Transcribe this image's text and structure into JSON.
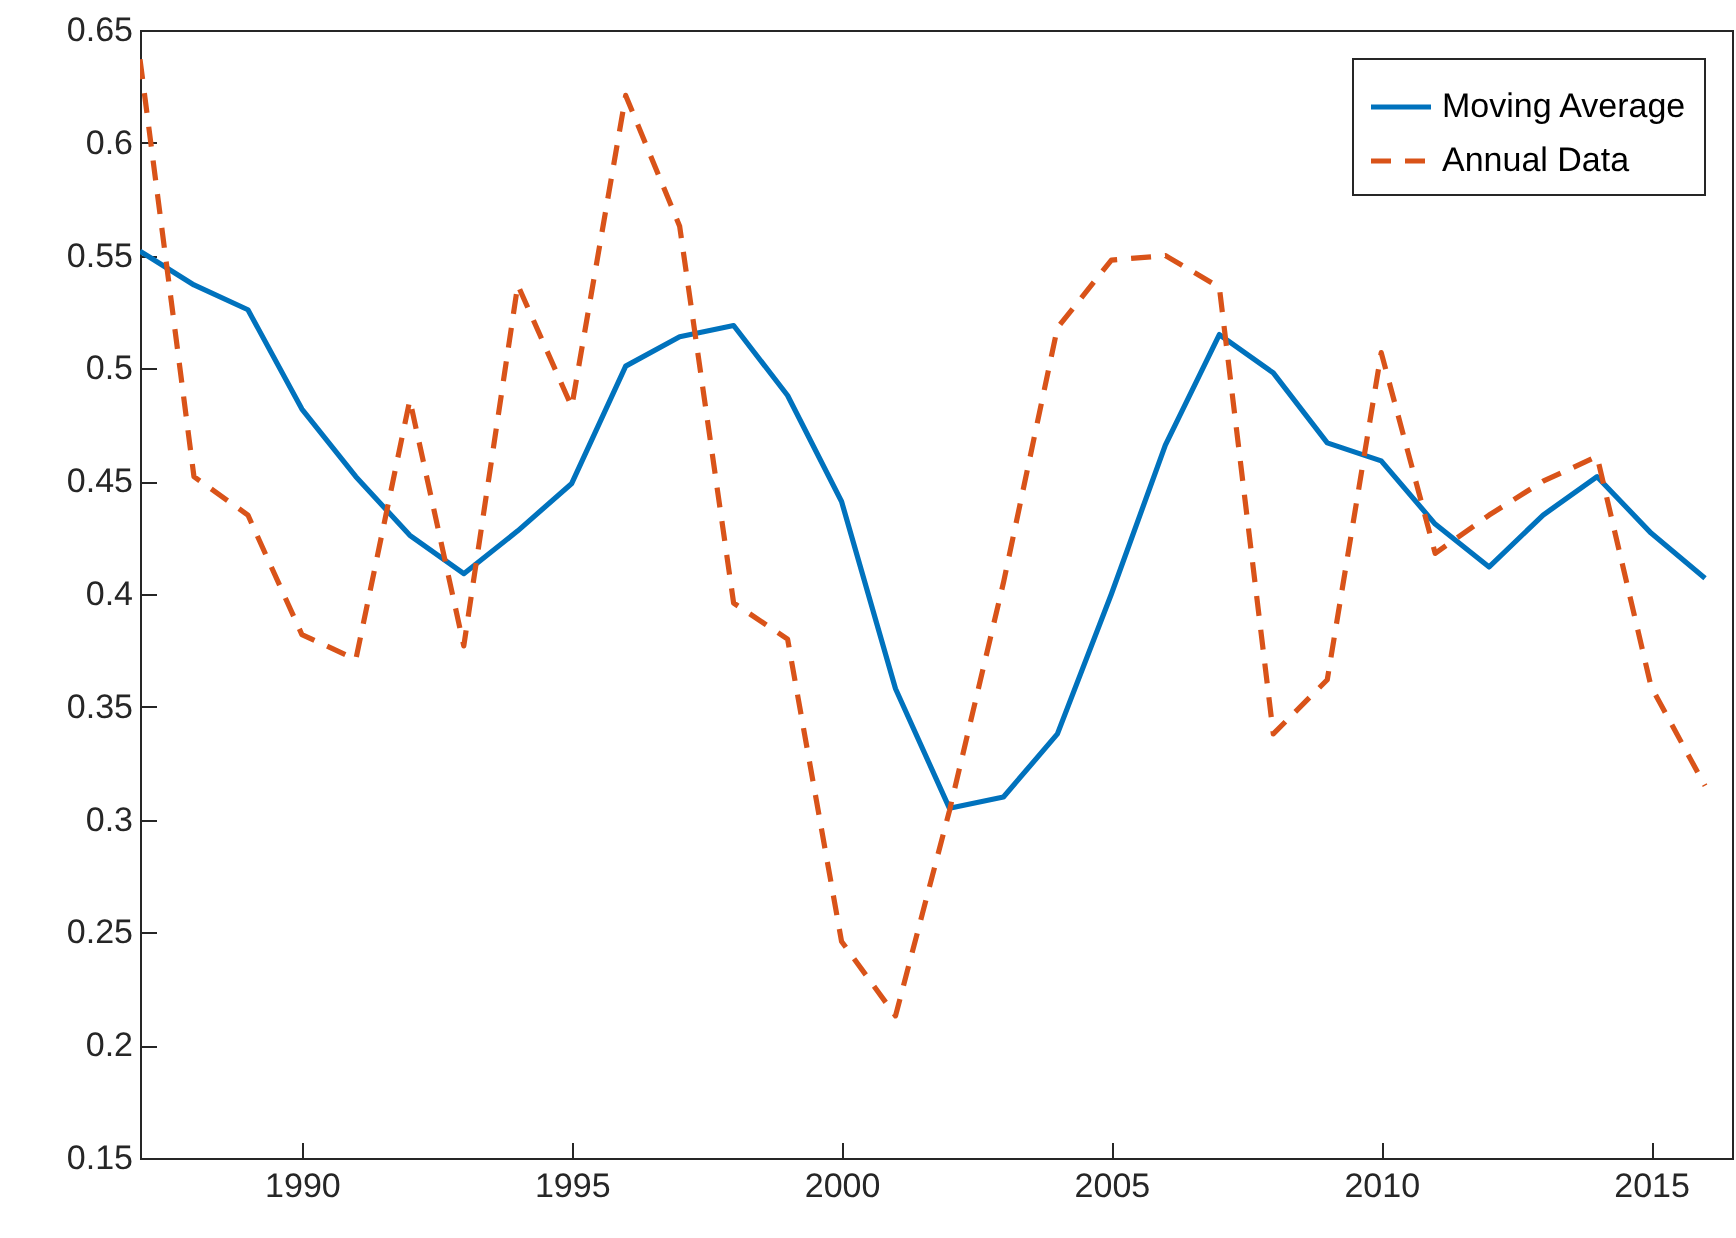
{
  "chart_data": {
    "type": "line",
    "x": [
      1987,
      1988,
      1989,
      1990,
      1991,
      1992,
      1993,
      1994,
      1995,
      1996,
      1997,
      1998,
      1999,
      2000,
      2001,
      2002,
      2003,
      2004,
      2005,
      2006,
      2007,
      2008,
      2009,
      2010,
      2011,
      2012,
      2013,
      2014,
      2015,
      2016
    ],
    "series": [
      {
        "name": "Moving Average",
        "color": "#0072bd",
        "line_style": "solid",
        "values": [
          0.552,
          0.537,
          0.526,
          0.482,
          0.452,
          0.426,
          0.409,
          0.428,
          0.449,
          0.501,
          0.514,
          0.519,
          0.488,
          0.441,
          0.358,
          0.305,
          0.31,
          0.338,
          0.4,
          0.466,
          0.515,
          0.498,
          0.467,
          0.459,
          0.431,
          0.412,
          0.435,
          0.452,
          0.427,
          0.407
        ]
      },
      {
        "name": "Annual Data",
        "color": "#d95319",
        "line_style": "dashed",
        "values": [
          0.637,
          0.452,
          0.435,
          0.382,
          0.371,
          0.486,
          0.377,
          0.537,
          0.483,
          0.621,
          0.563,
          0.396,
          0.38,
          0.246,
          0.213,
          0.304,
          0.405,
          0.518,
          0.548,
          0.55,
          0.536,
          0.338,
          0.362,
          0.507,
          0.418,
          0.435,
          0.45,
          0.461,
          0.359,
          0.315
        ]
      }
    ],
    "xlim": [
      1987,
      2016.5
    ],
    "xticks": [
      1990,
      1995,
      2000,
      2005,
      2010,
      2015
    ],
    "ylim": [
      0.15,
      0.65
    ],
    "yticks": [
      0.15,
      0.2,
      0.25,
      0.3,
      0.35,
      0.4,
      0.45,
      0.5,
      0.55,
      0.6,
      0.65
    ],
    "legend": "top right",
    "grid": false
  }
}
